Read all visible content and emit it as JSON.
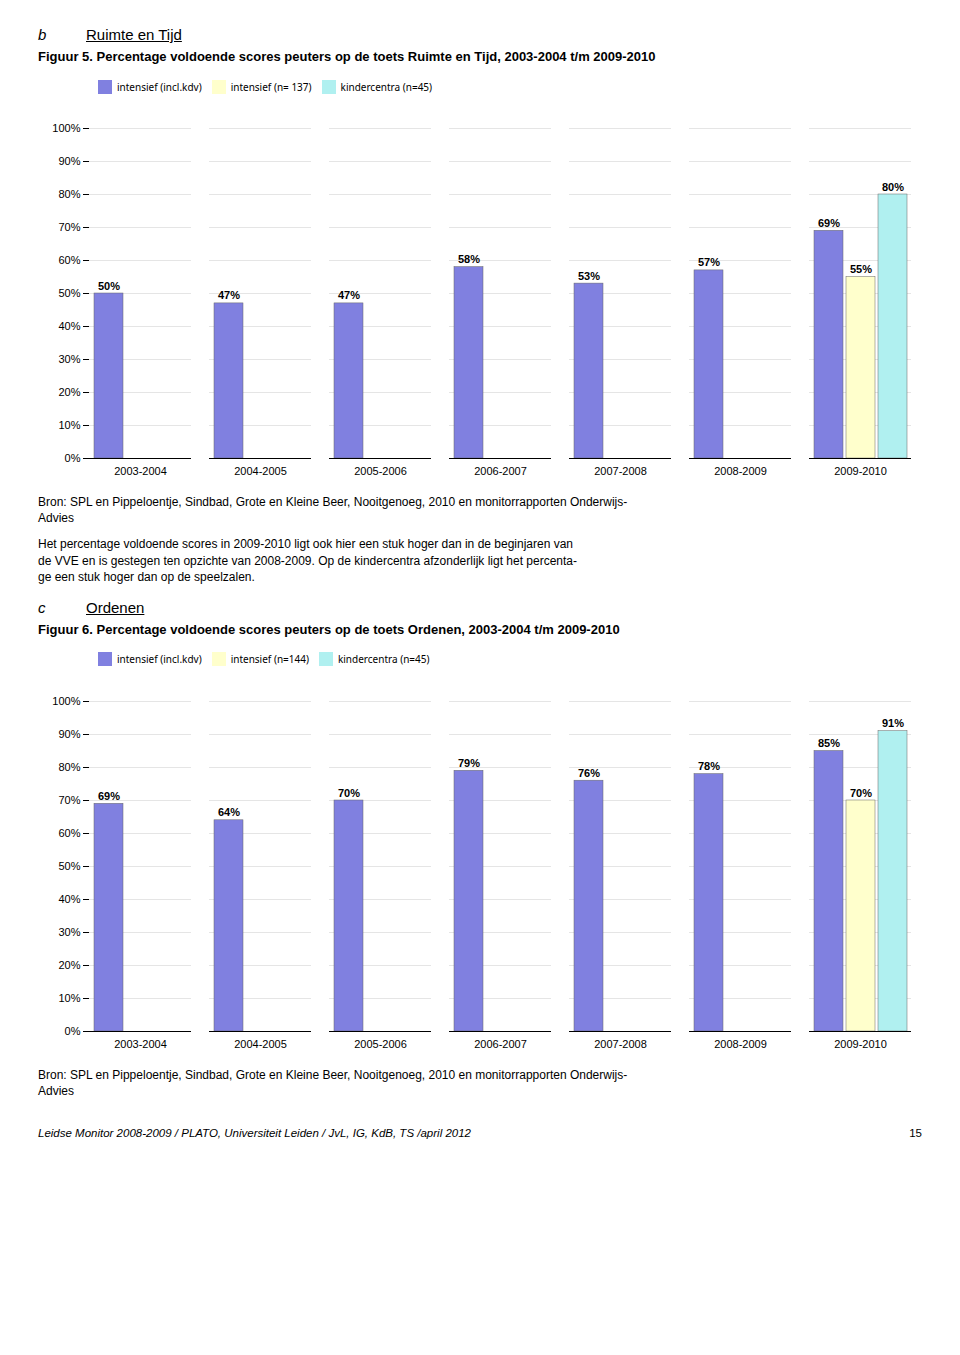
{
  "chart_data": [
    {
      "type": "bar",
      "section": {
        "label": "b",
        "title": "Ruimte en Tijd"
      },
      "title": "Figuur 5. Percentage voldoende scores peuters op de toets Ruimte en Tijd, 2003-2004 t/m 2009-2010",
      "categories": [
        "2003-2004",
        "2004-2005",
        "2005-2006",
        "2006-2007",
        "2007-2008",
        "2008-2009",
        "2009-2010"
      ],
      "series": [
        {
          "name": "intensief (incl.kdv)",
          "color": "#8080e0",
          "values": [
            50,
            47,
            47,
            58,
            53,
            57,
            69
          ],
          "value_labels": [
            "50%",
            "47%",
            "47%",
            "58%",
            "53%",
            "57%",
            "69%"
          ]
        },
        {
          "name": "intensief (n= 137)",
          "color": "#ffffcc",
          "values": [
            null,
            null,
            null,
            null,
            null,
            null,
            55
          ],
          "value_labels": [
            null,
            null,
            null,
            null,
            null,
            null,
            "55%"
          ]
        },
        {
          "name": "kindercentra (n=45)",
          "color": "#b0f0f0",
          "values": [
            null,
            null,
            null,
            null,
            null,
            null,
            80
          ],
          "value_labels": [
            null,
            null,
            null,
            null,
            null,
            null,
            "80%"
          ]
        }
      ],
      "ylim": [
        0,
        100
      ],
      "yticks": [
        {
          "value": 0,
          "label": "0%"
        },
        {
          "value": 10,
          "label": "10%"
        },
        {
          "value": 20,
          "label": "20%"
        },
        {
          "value": 30,
          "label": "30%"
        },
        {
          "value": 40,
          "label": "40%"
        },
        {
          "value": 50,
          "label": "50%"
        },
        {
          "value": 60,
          "label": "60%"
        },
        {
          "value": 70,
          "label": "70%"
        },
        {
          "value": 80,
          "label": "80%"
        },
        {
          "value": 90,
          "label": "90%"
        },
        {
          "value": 100,
          "label": "100%"
        }
      ],
      "grid": true,
      "legend": "upper left",
      "data_labels": true,
      "caption": "Bron: SPL en Pippeloentje, Sindbad, Grote en Kleine Beer, Nooitgenoeg, 2010 en monitorrapporten Onderwijs-\nAdvies",
      "notes": "Het percentage voldoende scores in 2009-2010 ligt ook hier een stuk hoger dan in de beginjaren van\nde VVE en is gestegen ten opzichte van 2008-2009. Op de kindercentra afzonderlijk ligt het percenta-\nge een stuk hoger dan op de speelzalen."
    },
    {
      "type": "bar",
      "section": {
        "label": "c",
        "title": "Ordenen"
      },
      "title": "Figuur 6. Percentage voldoende scores peuters op de toets Ordenen, 2003-2004 t/m 2009-2010",
      "categories": [
        "2003-2004",
        "2004-2005",
        "2005-2006",
        "2006-2007",
        "2007-2008",
        "2008-2009",
        "2009-2010"
      ],
      "series": [
        {
          "name": "intensief (incl.kdv)",
          "color": "#8080e0",
          "values": [
            69,
            64,
            70,
            79,
            76,
            78,
            85
          ],
          "value_labels": [
            "69%",
            "64%",
            "70%",
            "79%",
            "76%",
            "78%",
            "85%"
          ]
        },
        {
          "name": "intensief (n=144)",
          "color": "#ffffcc",
          "values": [
            null,
            null,
            null,
            null,
            null,
            null,
            70
          ],
          "value_labels": [
            null,
            null,
            null,
            null,
            null,
            null,
            "70%"
          ]
        },
        {
          "name": "kindercentra (n=45)",
          "color": "#b0f0f0",
          "values": [
            null,
            null,
            null,
            null,
            null,
            null,
            91
          ],
          "value_labels": [
            null,
            null,
            null,
            null,
            null,
            null,
            "91%"
          ]
        }
      ],
      "ylim": [
        0,
        100
      ],
      "yticks": [
        {
          "value": 0,
          "label": "0%"
        },
        {
          "value": 10,
          "label": "10%"
        },
        {
          "value": 20,
          "label": "20%"
        },
        {
          "value": 30,
          "label": "30%"
        },
        {
          "value": 40,
          "label": "40%"
        },
        {
          "value": 50,
          "label": "50%"
        },
        {
          "value": 60,
          "label": "60%"
        },
        {
          "value": 70,
          "label": "70%"
        },
        {
          "value": 80,
          "label": "80%"
        },
        {
          "value": 90,
          "label": "90%"
        },
        {
          "value": 100,
          "label": "100%"
        }
      ],
      "grid": true,
      "legend": "upper left",
      "data_labels": true,
      "caption": "Bron: SPL en Pippeloentje, Sindbad, Grote en Kleine Beer, Nooitgenoeg, 2010 en monitorrapporten Onderwijs-\nAdvies"
    }
  ],
  "footer": "Leidse Monitor 2008-2009 / PLATO, Universiteit Leiden / JvL, IG, KdB, TS /april 2012",
  "footer_page": "15"
}
